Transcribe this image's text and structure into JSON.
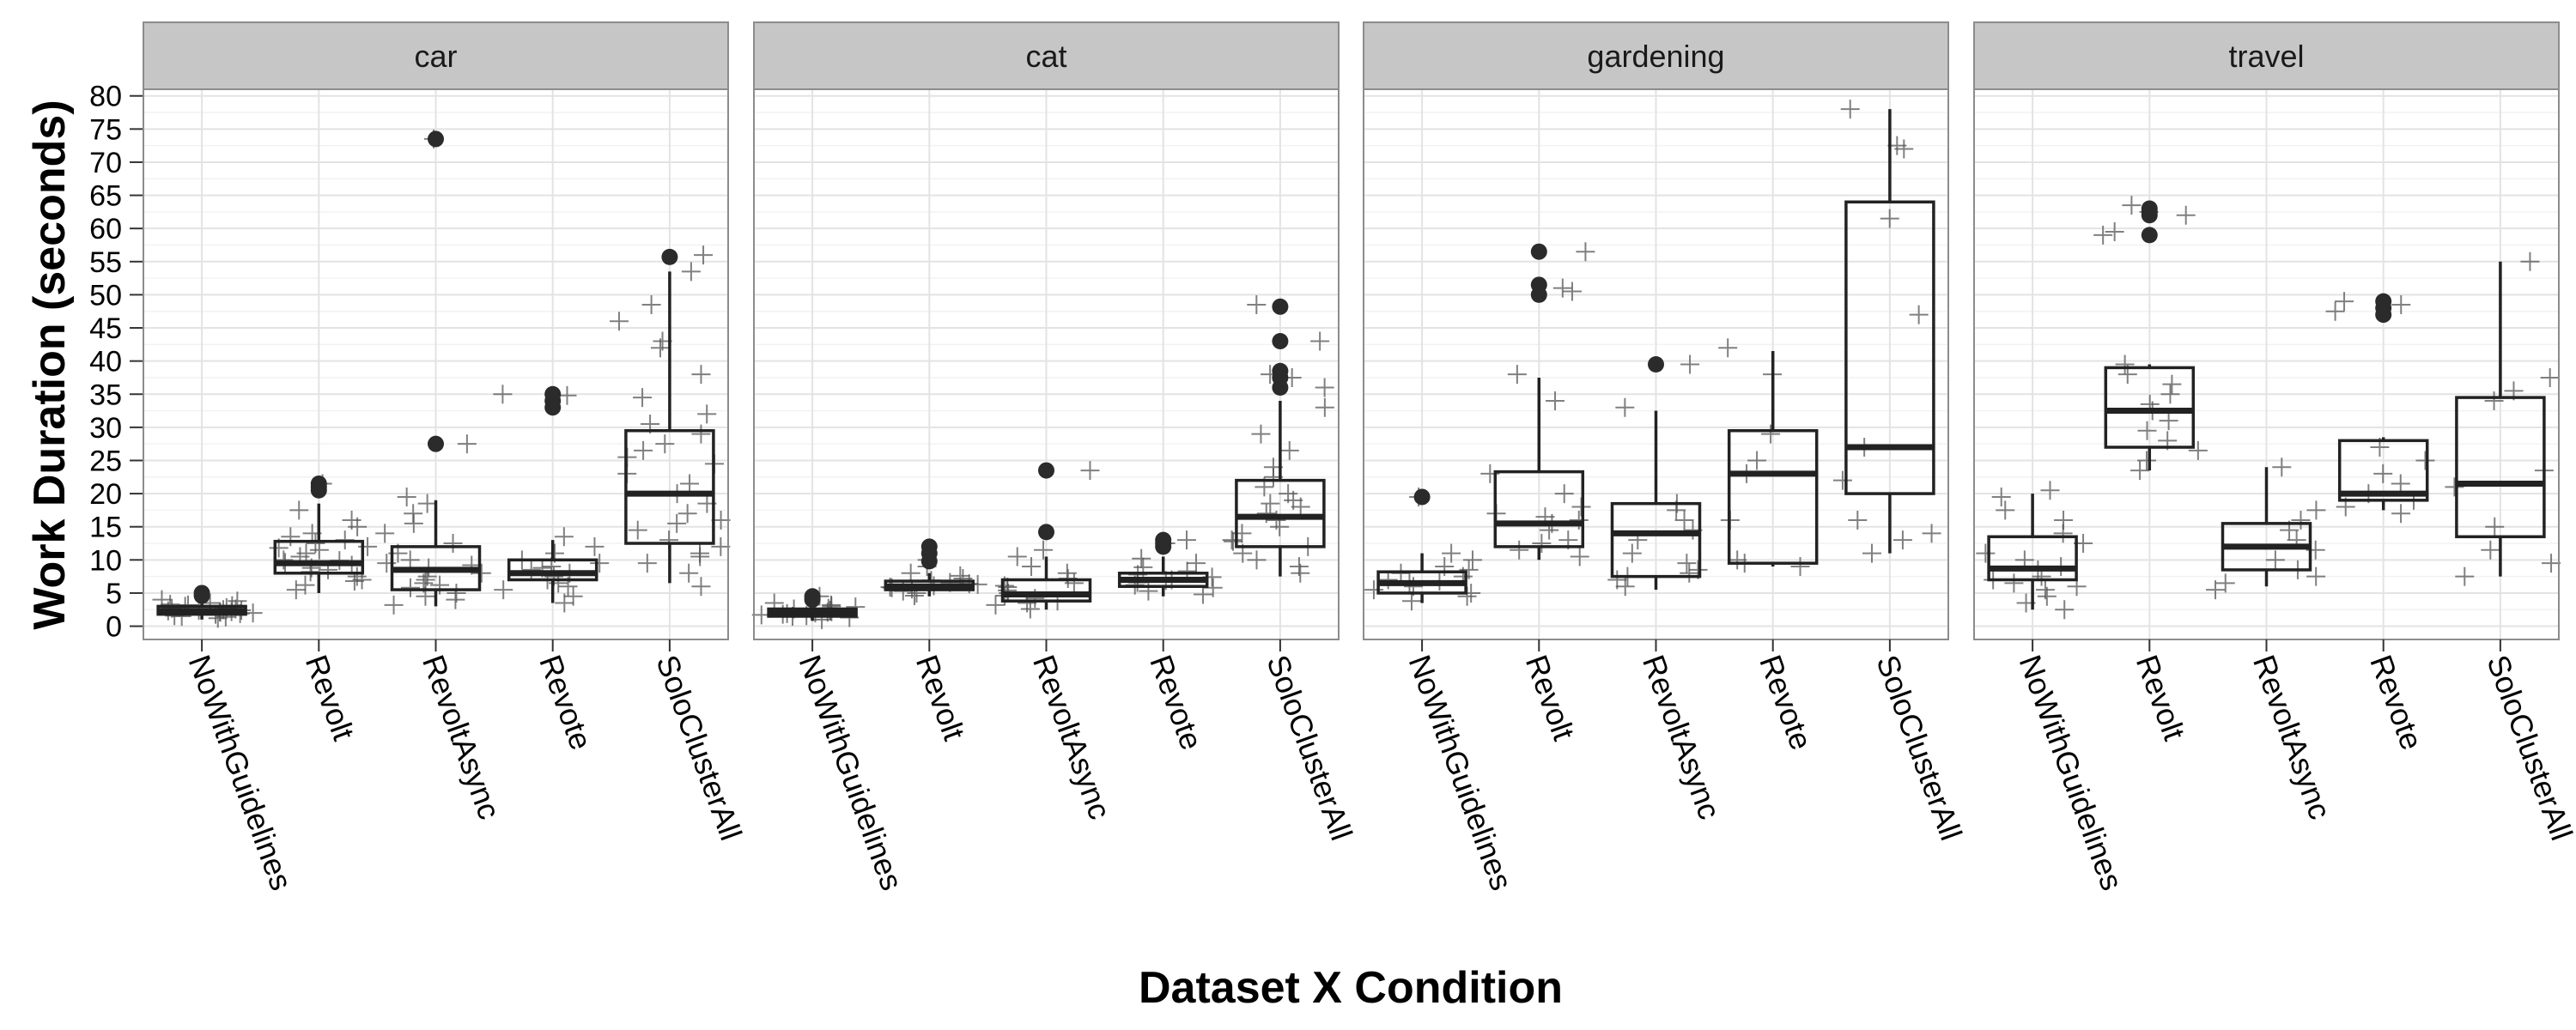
{
  "chart_data": {
    "type": "boxplot",
    "xlabel": "Dataset X Condition",
    "ylabel": "Work Duration (seconds)",
    "ylim": [
      -2,
      81
    ],
    "yticks": [
      0,
      5,
      10,
      15,
      20,
      25,
      30,
      35,
      40,
      45,
      50,
      55,
      60,
      65,
      70,
      75,
      80
    ],
    "grid": true,
    "categories": [
      "NoWithGuidelines",
      "Revolt",
      "RevoltAsync",
      "Revote",
      "SoloClusterAll"
    ],
    "facets": [
      {
        "name": "car",
        "boxes": [
          {
            "category": "NoWithGuidelines",
            "whisker_low": 1.0,
            "q1": 1.8,
            "median": 2.3,
            "q3": 3.0,
            "whisker_high": 4.2,
            "outliers": [
              4.6,
              5.0
            ],
            "points": [
              1.2,
              1.5,
              1.8,
              2.0,
              2.1,
              2.2,
              2.3,
              2.4,
              2.5,
              2.6,
              2.8,
              3.0,
              3.1,
              3.3,
              3.5,
              1.6,
              2.7,
              2.2,
              1.9,
              3.8,
              4.0,
              2.4,
              1.4,
              3.2
            ]
          },
          {
            "category": "Revolt",
            "whisker_low": 5.0,
            "q1": 8.0,
            "median": 9.5,
            "q3": 12.8,
            "whisker_high": 18.5,
            "outliers": [
              20.5,
              21.0,
              21.5
            ],
            "points": [
              5.5,
              6.2,
              7.0,
              7.5,
              8.2,
              8.8,
              9.2,
              9.6,
              10.0,
              10.5,
              11.0,
              11.5,
              12.0,
              12.5,
              13.0,
              13.5,
              14.0,
              15.0,
              16.0,
              17.5,
              21.5,
              6.8,
              9.9,
              11.8,
              8.5
            ]
          },
          {
            "category": "RevoltAsync",
            "whisker_low": 3.0,
            "q1": 5.5,
            "median": 8.5,
            "q3": 12.0,
            "whisker_high": 19.0,
            "outliers": [
              27.5,
              73.5
            ],
            "points": [
              3.2,
              4.0,
              4.5,
              5.0,
              5.8,
              6.5,
              7.0,
              7.5,
              8.0,
              8.8,
              9.5,
              10.0,
              11.0,
              12.5,
              14.0,
              15.5,
              17.0,
              18.5,
              19.5,
              27.5,
              73.5,
              6.2,
              9.2
            ]
          },
          {
            "category": "Revote",
            "whisker_low": 3.5,
            "q1": 7.0,
            "median": 8.0,
            "q3": 10.0,
            "whisker_high": 13.0,
            "outliers": [
              33.0,
              34.0,
              35.0
            ],
            "points": [
              3.5,
              4.5,
              5.5,
              6.5,
              7.0,
              7.5,
              8.0,
              8.5,
              9.0,
              9.5,
              10.0,
              11.0,
              12.0,
              13.5,
              35.0,
              34.8,
              6.0,
              8.8
            ]
          },
          {
            "category": "SoloClusterAll",
            "whisker_low": 6.5,
            "q1": 12.5,
            "median": 20.0,
            "q3": 29.5,
            "whisker_high": 53.5,
            "outliers": [
              55.7
            ],
            "points": [
              6.0,
              8.0,
              9.5,
              11.0,
              12.0,
              13.0,
              14.5,
              15.5,
              17.0,
              18.5,
              20.0,
              21.5,
              23.0,
              24.5,
              25.5,
              26.5,
              27.5,
              29.0,
              30.5,
              32.0,
              34.5,
              38.0,
              42.0,
              43.0,
              46.0,
              48.5,
              53.5,
              56.0,
              10.5,
              16.0
            ]
          }
        ]
      },
      {
        "name": "cat",
        "boxes": [
          {
            "category": "NoWithGuidelines",
            "whisker_low": 0.8,
            "q1": 1.5,
            "median": 2.0,
            "q3": 2.6,
            "whisker_high": 3.6,
            "outliers": [
              4.0,
              4.5
            ],
            "points": [
              1.0,
              1.3,
              1.5,
              1.7,
              1.9,
              2.0,
              2.1,
              2.2,
              2.4,
              2.5,
              2.7,
              2.9,
              3.2,
              3.5,
              4.5,
              1.8,
              2.3,
              1.6,
              2.6,
              3.0
            ]
          },
          {
            "category": "Revolt",
            "whisker_low": 4.5,
            "q1": 5.5,
            "median": 6.0,
            "q3": 6.8,
            "whisker_high": 8.0,
            "outliers": [
              9.8,
              11.0,
              12.0
            ],
            "points": [
              4.6,
              5.0,
              5.3,
              5.6,
              5.9,
              6.1,
              6.3,
              6.6,
              6.9,
              7.2,
              7.6,
              8.0,
              9.0,
              10.0,
              5.8,
              6.4
            ]
          },
          {
            "category": "RevoltAsync",
            "whisker_low": 2.5,
            "q1": 3.8,
            "median": 4.8,
            "q3": 7.0,
            "whisker_high": 10.5,
            "outliers": [
              14.2,
              23.5
            ],
            "points": [
              2.6,
              3.2,
              3.8,
              4.2,
              4.6,
              5.0,
              5.4,
              5.9,
              6.5,
              7.2,
              8.0,
              9.0,
              10.5,
              11.5,
              23.5,
              3.5,
              6.1
            ]
          },
          {
            "category": "Revote",
            "whisker_low": 4.5,
            "q1": 6.0,
            "median": 7.0,
            "q3": 8.0,
            "whisker_high": 10.5,
            "outliers": [
              12.0,
              12.5,
              13.0
            ],
            "points": [
              4.8,
              5.3,
              5.8,
              6.2,
              6.6,
              7.0,
              7.4,
              7.8,
              8.3,
              8.9,
              9.5,
              10.2,
              12.5,
              13.0,
              6.9
            ]
          },
          {
            "category": "SoloClusterAll",
            "whisker_low": 7.5,
            "q1": 12.0,
            "median": 16.5,
            "q3": 22.0,
            "whisker_high": 34.0,
            "outliers": [
              36.0,
              37.5,
              38.5,
              43.0,
              48.2
            ],
            "points": [
              8.0,
              9.0,
              10.0,
              11.0,
              12.0,
              13.0,
              14.0,
              15.0,
              16.0,
              17.0,
              18.0,
              19.0,
              20.0,
              21.0,
              22.5,
              24.0,
              26.5,
              29.0,
              33.0,
              36.0,
              37.5,
              38.0,
              43.0,
              48.5,
              12.8,
              18.5
            ]
          }
        ]
      },
      {
        "name": "gardening",
        "boxes": [
          {
            "category": "NoWithGuidelines",
            "whisker_low": 3.5,
            "q1": 5.0,
            "median": 6.5,
            "q3": 8.2,
            "whisker_high": 11.0,
            "outliers": [
              19.5
            ],
            "points": [
              3.8,
              4.5,
              5.0,
              5.5,
              6.0,
              6.5,
              7.0,
              7.5,
              8.0,
              8.5,
              9.0,
              10.0,
              11.0,
              19.5,
              6.8
            ]
          },
          {
            "category": "Revolt",
            "whisker_low": 10.0,
            "q1": 12.0,
            "median": 15.5,
            "q3": 23.3,
            "whisker_high": 37.5,
            "outliers": [
              50.0,
              51.5,
              56.5
            ],
            "points": [
              10.5,
              11.5,
              13.0,
              14.5,
              15.5,
              16.5,
              17.0,
              18.0,
              20.0,
              23.0,
              34.0,
              38.0,
              50.5,
              51.0,
              56.5,
              12.5,
              16.0
            ]
          },
          {
            "category": "RevoltAsync",
            "whisker_low": 5.5,
            "q1": 7.5,
            "median": 14.0,
            "q3": 18.5,
            "whisker_high": 32.5,
            "outliers": [
              39.5
            ],
            "points": [
              6.0,
              7.0,
              7.5,
              8.5,
              9.5,
              11.0,
              13.0,
              14.5,
              16.0,
              17.5,
              18.5,
              33.0,
              39.5,
              8.0
            ]
          },
          {
            "category": "Revote",
            "whisker_low": 9.0,
            "q1": 9.5,
            "median": 23.0,
            "q3": 29.5,
            "whisker_high": 41.5,
            "outliers": [],
            "points": [
              9.0,
              9.5,
              10.0,
              16.0,
              23.0,
              25.0,
              29.0,
              38.0,
              42.0
            ]
          },
          {
            "category": "SoloClusterAll",
            "whisker_low": 11.0,
            "q1": 20.0,
            "median": 27.0,
            "q3": 64.0,
            "whisker_high": 78.0,
            "outliers": [],
            "points": [
              11.0,
              13.0,
              14.0,
              16.0,
              22.0,
              27.0,
              47.0,
              61.5,
              72.0,
              72.5,
              78.0
            ]
          }
        ]
      },
      {
        "name": "travel",
        "boxes": [
          {
            "category": "NoWithGuidelines",
            "whisker_low": 2.5,
            "q1": 7.0,
            "median": 8.7,
            "q3": 13.5,
            "whisker_high": 20.0,
            "outliers": [],
            "points": [
              2.5,
              3.5,
              4.5,
              5.5,
              6.5,
              7.0,
              7.5,
              8.5,
              9.0,
              10.0,
              11.0,
              12.5,
              14.0,
              16.0,
              17.5,
              19.5,
              20.5,
              6.0
            ]
          },
          {
            "category": "Revolt",
            "whisker_low": 23.5,
            "q1": 27.0,
            "median": 32.5,
            "q3": 39.0,
            "whisker_high": 39.5,
            "outliers": [
              59.0,
              62.0,
              62.5,
              63.0
            ],
            "points": [
              23.5,
              25.0,
              26.5,
              28.0,
              29.5,
              31.0,
              32.5,
              33.5,
              35.0,
              36.5,
              38.0,
              39.5,
              59.0,
              59.5,
              62.0,
              62.5,
              63.5
            ]
          },
          {
            "category": "RevoltAsync",
            "whisker_low": 6.0,
            "q1": 8.5,
            "median": 12.0,
            "q3": 15.5,
            "whisker_high": 24.0,
            "outliers": [],
            "points": [
              5.5,
              6.5,
              7.5,
              8.5,
              10.0,
              11.5,
              13.0,
              14.5,
              16.0,
              17.5,
              24.0
            ]
          },
          {
            "category": "Revote",
            "whisker_low": 17.5,
            "q1": 19.0,
            "median": 20.0,
            "q3": 28.0,
            "whisker_high": 28.5,
            "outliers": [
              47.0,
              48.0,
              49.0
            ],
            "points": [
              17.0,
              18.0,
              19.0,
              20.0,
              21.5,
              23.0,
              25.0,
              27.0,
              47.5,
              48.5,
              49.0
            ]
          },
          {
            "category": "SoloClusterAll",
            "whisker_low": 7.5,
            "q1": 13.5,
            "median": 21.5,
            "q3": 34.5,
            "whisker_high": 55.0,
            "outliers": [],
            "points": [
              7.5,
              9.5,
              11.5,
              15.0,
              21.0,
              23.5,
              34.0,
              35.5,
              37.5,
              55.0
            ]
          }
        ]
      }
    ]
  }
}
